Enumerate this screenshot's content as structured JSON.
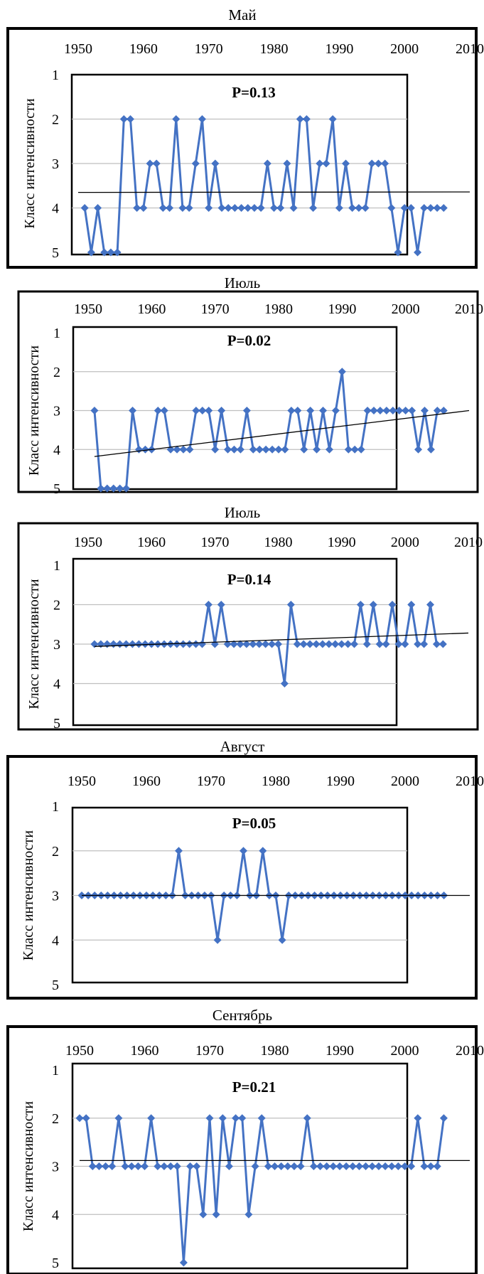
{
  "chart_data": [
    {
      "type": "line",
      "title": "Май",
      "annotation": "P=0.13",
      "xlabel": "",
      "ylabel": "Класс интенсивности",
      "x_ticks": [
        "1950",
        "1960",
        "1970",
        "1980",
        "1990",
        "2000",
        "2010"
      ],
      "y_ticks": [
        "1",
        "2",
        "3",
        "4",
        "5"
      ],
      "xlim": [
        1950,
        2010
      ],
      "ylim": [
        1,
        5
      ],
      "y_inverted": true,
      "grid": true,
      "series": [
        {
          "x": [
            1951,
            1952,
            1953,
            1954,
            1955,
            1956,
            1957,
            1958,
            1959,
            1960,
            1961,
            1962,
            1963,
            1964,
            1965,
            1966,
            1967,
            1968,
            1969,
            1970,
            1971,
            1972,
            1973,
            1974,
            1975,
            1976,
            1977,
            1978,
            1979,
            1980,
            1981,
            1982,
            1983,
            1984,
            1985,
            1986,
            1987,
            1988,
            1989,
            1990,
            1991,
            1992,
            1993,
            1994,
            1995,
            1996,
            1997,
            1998,
            1999,
            2000,
            2001,
            2002,
            2003,
            2004,
            2005,
            2006
          ],
          "values": [
            4,
            5,
            4,
            5,
            5,
            5,
            2,
            2,
            4,
            4,
            3,
            3,
            4,
            4,
            2,
            4,
            4,
            3,
            2,
            4,
            3,
            4,
            4,
            4,
            4,
            4,
            4,
            4,
            3,
            4,
            4,
            3,
            4,
            2,
            2,
            4,
            3,
            3,
            2,
            4,
            3,
            4,
            4,
            4,
            3,
            3,
            3,
            4,
            5,
            4,
            4,
            5,
            4,
            4,
            4,
            4
          ]
        }
      ],
      "trend": {
        "x": [
          1950,
          2010
        ],
        "values": [
          3.65,
          3.64
        ]
      }
    },
    {
      "type": "line",
      "title": "Июль",
      "annotation": "P=0.02",
      "xlabel": "",
      "ylabel": "Класс интенсивности",
      "x_ticks": [
        "1950",
        "1960",
        "1970",
        "1980",
        "1990",
        "2000",
        "2010"
      ],
      "y_ticks": [
        "1",
        "2",
        "3",
        "4",
        "5"
      ],
      "xlim": [
        1950,
        2010
      ],
      "ylim": [
        1,
        5
      ],
      "y_inverted": true,
      "grid": true,
      "series": [
        {
          "x": [
            1951,
            1952,
            1953,
            1954,
            1955,
            1956,
            1957,
            1958,
            1959,
            1960,
            1961,
            1962,
            1963,
            1964,
            1965,
            1966,
            1967,
            1968,
            1969,
            1970,
            1971,
            1972,
            1973,
            1974,
            1975,
            1976,
            1977,
            1978,
            1979,
            1980,
            1981,
            1982,
            1983,
            1984,
            1985,
            1986,
            1987,
            1988,
            1989,
            1990,
            1991,
            1992,
            1993,
            1994,
            1995,
            1996,
            1997,
            1998,
            1999,
            2000,
            2001,
            2002,
            2003,
            2004,
            2005,
            2006
          ],
          "values": [
            3,
            5,
            5,
            5,
            5,
            5,
            3,
            4,
            4,
            4,
            3,
            3,
            4,
            4,
            4,
            4,
            3,
            3,
            3,
            4,
            3,
            4,
            4,
            4,
            3,
            4,
            4,
            4,
            4,
            4,
            4,
            3,
            3,
            4,
            3,
            4,
            3,
            4,
            3,
            2,
            4,
            4,
            4,
            3,
            3,
            3,
            3,
            3,
            3,
            3,
            3,
            4,
            3,
            4,
            3,
            3
          ]
        }
      ],
      "trend": {
        "x": [
          1951,
          2010
        ],
        "values": [
          4.18,
          3.0
        ]
      }
    },
    {
      "type": "line",
      "title": "Июль",
      "annotation": "P=0.14",
      "xlabel": "",
      "ylabel": "Класс интенсивности",
      "x_ticks": [
        "1950",
        "1960",
        "1970",
        "1980",
        "1990",
        "2000",
        "2010"
      ],
      "y_ticks": [
        "1",
        "2",
        "3",
        "4",
        "5"
      ],
      "xlim": [
        1950,
        2010
      ],
      "ylim": [
        1,
        5
      ],
      "y_inverted": true,
      "grid": true,
      "series": [
        {
          "x": [
            1951,
            1952,
            1953,
            1954,
            1955,
            1956,
            1957,
            1958,
            1959,
            1960,
            1961,
            1962,
            1963,
            1964,
            1965,
            1966,
            1967,
            1968,
            1969,
            1970,
            1971,
            1972,
            1973,
            1974,
            1975,
            1976,
            1977,
            1978,
            1979,
            1980,
            1981,
            1982,
            1983,
            1984,
            1985,
            1986,
            1987,
            1988,
            1989,
            1990,
            1991,
            1992,
            1993,
            1994,
            1995,
            1996,
            1997,
            1998,
            1999,
            2000,
            2001,
            2002,
            2003,
            2004,
            2005,
            2006
          ],
          "values": [
            3,
            3,
            3,
            3,
            3,
            3,
            3,
            3,
            3,
            3,
            3,
            3,
            3,
            3,
            3,
            3,
            3,
            3,
            2,
            3,
            2,
            3,
            3,
            3,
            3,
            3,
            3,
            3,
            3,
            3,
            4,
            2,
            3,
            3,
            3,
            3,
            3,
            3,
            3,
            3,
            3,
            3,
            2,
            3,
            2,
            3,
            3,
            2,
            3,
            3,
            2,
            3,
            3,
            2,
            3,
            3
          ]
        }
      ],
      "trend": {
        "x": [
          1951,
          2010
        ],
        "values": [
          3.06,
          2.72
        ]
      }
    },
    {
      "type": "line",
      "title": "Август",
      "annotation": "P=0.05",
      "xlabel": "",
      "ylabel": "Класс интенсивности",
      "x_ticks": [
        "1950",
        "1960",
        "1970",
        "1980",
        "1990",
        "2000",
        "2010"
      ],
      "y_ticks": [
        "1",
        "2",
        "3",
        "4",
        "5"
      ],
      "xlim": [
        1950,
        2010
      ],
      "ylim": [
        1,
        5
      ],
      "y_inverted": true,
      "grid": true,
      "series": [
        {
          "x": [
            1950,
            1951,
            1952,
            1953,
            1954,
            1955,
            1956,
            1957,
            1958,
            1959,
            1960,
            1961,
            1962,
            1963,
            1964,
            1965,
            1966,
            1967,
            1968,
            1969,
            1970,
            1971,
            1972,
            1973,
            1974,
            1975,
            1976,
            1977,
            1978,
            1979,
            1980,
            1981,
            1982,
            1983,
            1984,
            1985,
            1986,
            1987,
            1988,
            1989,
            1990,
            1991,
            1992,
            1993,
            1994,
            1995,
            1996,
            1997,
            1998,
            1999,
            2000,
            2001,
            2002,
            2003,
            2004,
            2005,
            2006
          ],
          "values": [
            3,
            3,
            3,
            3,
            3,
            3,
            3,
            3,
            3,
            3,
            3,
            3,
            3,
            3,
            3,
            2,
            3,
            3,
            3,
            3,
            3,
            4,
            3,
            3,
            3,
            2,
            3,
            3,
            2,
            3,
            3,
            4,
            3,
            3,
            3,
            3,
            3,
            3,
            3,
            3,
            3,
            3,
            3,
            3,
            3,
            3,
            3,
            3,
            3,
            3,
            3,
            3,
            3,
            3,
            3,
            3,
            3
          ]
        }
      ],
      "trend": {
        "x": [
          1950,
          2010
        ],
        "values": [
          3.0,
          3.0
        ]
      }
    },
    {
      "type": "line",
      "title": "Сентябрь",
      "annotation": "P=0.21",
      "xlabel": "",
      "ylabel": "Класс интенсивности",
      "x_ticks": [
        "1950",
        "1960",
        "1970",
        "1980",
        "1990",
        "2000",
        "2010"
      ],
      "y_ticks": [
        "1",
        "2",
        "3",
        "4",
        "5"
      ],
      "xlim": [
        1950,
        2010
      ],
      "ylim": [
        1,
        5
      ],
      "y_inverted": true,
      "grid": true,
      "series": [
        {
          "x": [
            1950,
            1951,
            1952,
            1953,
            1954,
            1955,
            1956,
            1957,
            1958,
            1959,
            1960,
            1961,
            1962,
            1963,
            1964,
            1965,
            1966,
            1967,
            1968,
            1969,
            1970,
            1971,
            1972,
            1973,
            1974,
            1975,
            1976,
            1977,
            1978,
            1979,
            1980,
            1981,
            1982,
            1983,
            1984,
            1985,
            1986,
            1987,
            1988,
            1989,
            1990,
            1991,
            1992,
            1993,
            1994,
            1995,
            1996,
            1997,
            1998,
            1999,
            2000,
            2001,
            2002,
            2003,
            2004,
            2005,
            2006
          ],
          "values": [
            2,
            2,
            3,
            3,
            3,
            3,
            2,
            3,
            3,
            3,
            3,
            2,
            3,
            3,
            3,
            3,
            5,
            3,
            3,
            4,
            2,
            4,
            2,
            3,
            2,
            2,
            4,
            3,
            2,
            3,
            3,
            3,
            3,
            3,
            3,
            2,
            3,
            3,
            3,
            3,
            3,
            3,
            3,
            3,
            3,
            3,
            3,
            3,
            3,
            3,
            3,
            3,
            2,
            3,
            3,
            3,
            2
          ]
        }
      ],
      "trend": {
        "x": [
          1950,
          2010
        ],
        "values": [
          2.88,
          2.88
        ]
      }
    }
  ]
}
